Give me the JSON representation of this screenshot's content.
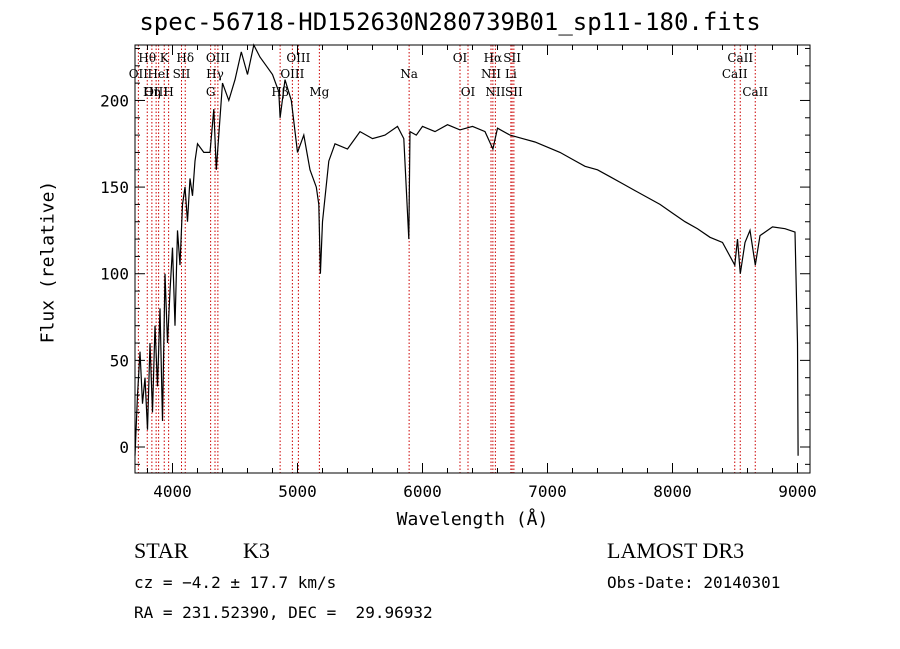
{
  "header": {
    "title": "spec-56718-HD152630N280739B01_sp11-180.fits"
  },
  "info": {
    "class": "STAR",
    "subclass": "K3",
    "survey": "LAMOST DR3",
    "cz": "cz = −4.2 ± 17.7 km/s",
    "obs_date": "Obs-Date: 20140301",
    "coords": "RA = 231.52390, DEC =  29.96932"
  },
  "chart_data": {
    "type": "line",
    "title": "spec-56718-HD152630N280739B01_sp11-180.fits",
    "xlabel": "Wavelength (Å)",
    "ylabel": "Flux (relative)",
    "xlim": [
      3700,
      9100
    ],
    "ylim": [
      -15,
      232
    ],
    "xticks": [
      4000,
      5000,
      6000,
      7000,
      8000,
      9000
    ],
    "yticks": [
      0,
      50,
      100,
      150,
      200
    ],
    "grid": false,
    "line_color": "#000000",
    "marker_color": "#cc0000",
    "series": [
      {
        "x": [
          3700,
          3720,
          3740,
          3760,
          3780,
          3800,
          3820,
          3840,
          3860,
          3880,
          3900,
          3920,
          3940,
          3960,
          3980,
          4000,
          4020,
          4040,
          4060,
          4080,
          4100,
          4120,
          4140,
          4160,
          4180,
          4200,
          4250,
          4300,
          4330,
          4350,
          4400,
          4450,
          4500,
          4550,
          4600,
          4650,
          4700,
          4750,
          4800,
          4850,
          4861,
          4900,
          4950,
          5000,
          5050,
          5100,
          5150,
          5170,
          5183,
          5200,
          5250,
          5300,
          5400,
          5500,
          5600,
          5700,
          5800,
          5850,
          5890,
          5900,
          5950,
          6000,
          6100,
          6200,
          6300,
          6400,
          6500,
          6563,
          6600,
          6700,
          6800,
          6900,
          7000,
          7100,
          7200,
          7300,
          7400,
          7500,
          7600,
          7700,
          7800,
          7900,
          8000,
          8100,
          8200,
          8300,
          8400,
          8498,
          8520,
          8542,
          8580,
          8620,
          8662,
          8700,
          8800,
          8900,
          8980,
          9000,
          9005
        ],
        "y": [
          -5,
          30,
          55,
          25,
          40,
          10,
          60,
          20,
          70,
          35,
          80,
          15,
          100,
          60,
          90,
          115,
          70,
          125,
          105,
          140,
          150,
          130,
          155,
          145,
          165,
          175,
          170,
          170,
          195,
          160,
          210,
          200,
          212,
          228,
          215,
          232,
          225,
          220,
          215,
          205,
          190,
          212,
          200,
          170,
          180,
          160,
          150,
          140,
          100,
          130,
          165,
          175,
          172,
          182,
          178,
          180,
          185,
          178,
          120,
          182,
          180,
          185,
          182,
          186,
          183,
          185,
          182,
          172,
          184,
          180,
          178,
          176,
          173,
          170,
          166,
          162,
          160,
          156,
          152,
          148,
          144,
          140,
          135,
          130,
          126,
          121,
          118,
          105,
          120,
          100,
          118,
          125,
          105,
          122,
          127,
          126,
          124,
          60,
          -5
        ]
      }
    ],
    "line_markers": [
      {
        "label": "Hθ",
        "x": 3798,
        "row": 1
      },
      {
        "label": "OII",
        "x": 3727,
        "row": 2
      },
      {
        "label": "OIII",
        "x": 3869,
        "row": 3
      },
      {
        "label": "Hη",
        "x": 3835,
        "row": 3
      },
      {
        "label": "K",
        "x": 3934,
        "row": 1
      },
      {
        "label": "HeI",
        "x": 3889,
        "row": 2
      },
      {
        "label": "H",
        "x": 3969,
        "row": 3
      },
      {
        "label": "SII",
        "x": 4072,
        "row": 2
      },
      {
        "label": "Hδ",
        "x": 4102,
        "row": 1
      },
      {
        "label": "OIII",
        "x": 4363,
        "row": 1
      },
      {
        "label": "Hγ",
        "x": 4340,
        "row": 2
      },
      {
        "label": "G",
        "x": 4305,
        "row": 3
      },
      {
        "label": "Hβ",
        "x": 4861,
        "row": 3
      },
      {
        "label": "OIII",
        "x": 5007,
        "row": 1
      },
      {
        "label": "OIII",
        "x": 4959,
        "row": 2
      },
      {
        "label": "Mg",
        "x": 5175,
        "row": 3
      },
      {
        "label": "Na",
        "x": 5893,
        "row": 2
      },
      {
        "label": "OI",
        "x": 6300,
        "row": 1
      },
      {
        "label": "OI",
        "x": 6364,
        "row": 3
      },
      {
        "label": "Hα",
        "x": 6563,
        "row": 1
      },
      {
        "label": "NII",
        "x": 6548,
        "row": 2
      },
      {
        "label": "NII",
        "x": 6583,
        "row": 3
      },
      {
        "label": "SII",
        "x": 6717,
        "row": 1
      },
      {
        "label": "Li",
        "x": 6707,
        "row": 2
      },
      {
        "label": "SII",
        "x": 6731,
        "row": 3
      },
      {
        "label": "CaII",
        "x": 8542,
        "row": 1
      },
      {
        "label": "CaII",
        "x": 8498,
        "row": 2
      },
      {
        "label": "CaII",
        "x": 8662,
        "row": 3
      }
    ]
  }
}
